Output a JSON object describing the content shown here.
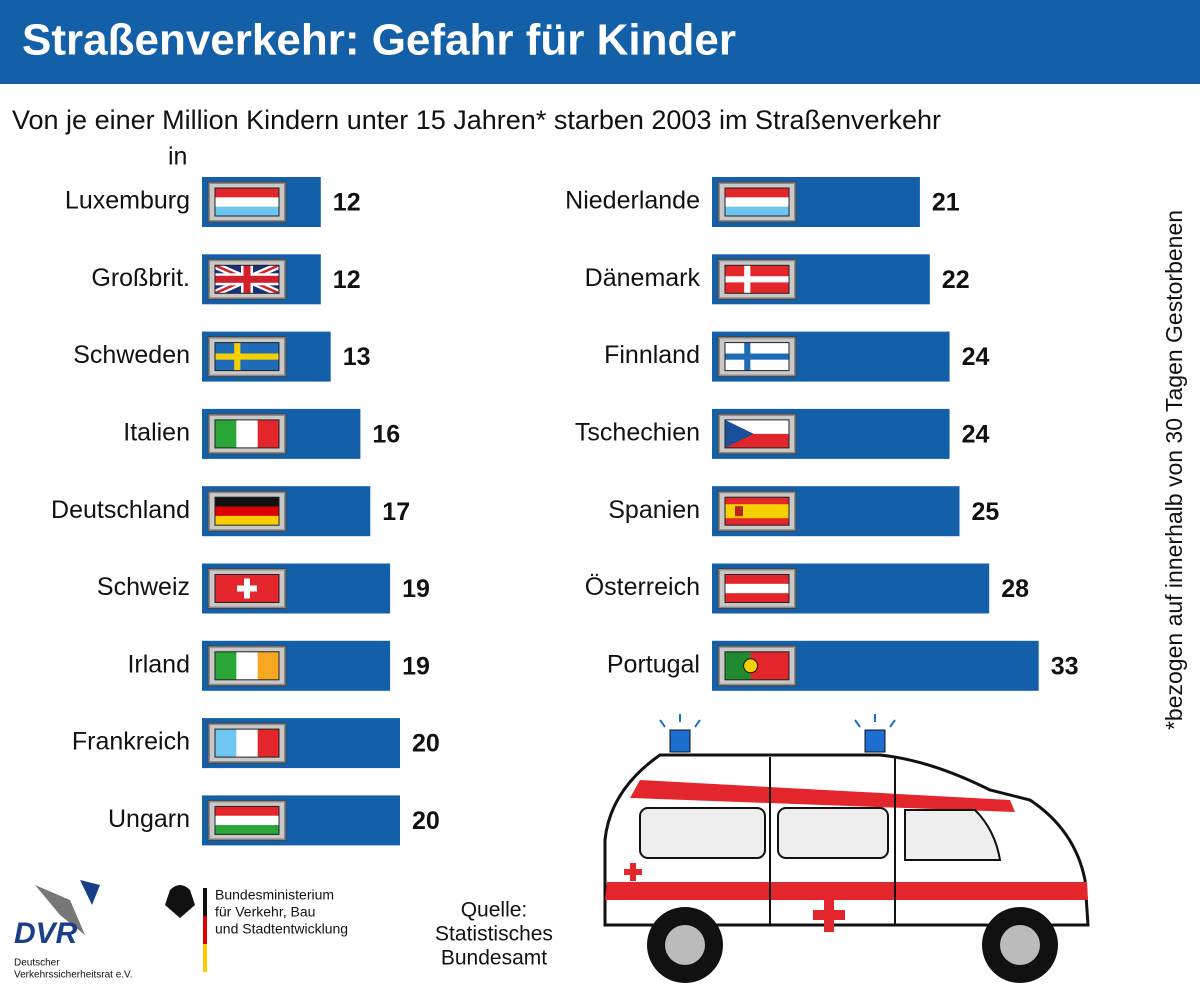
{
  "header": {
    "title": "Straßenverkehr: Gefahr für Kinder",
    "subtitle": "Von je einer Million Kindern unter 15 Jahren* starben 2003 im Straßenverkehr",
    "in_label": "in",
    "footnote": "*bezogen auf innerhalb von 30 Tagen Gestorbenen"
  },
  "chart_data": [
    {
      "type": "bar",
      "color": "#1460a8",
      "categories": [
        "Luxemburg",
        "Großbrit.",
        "Schweden",
        "Italien",
        "Deutschland",
        "Schweiz",
        "Irland",
        "Frankreich",
        "Ungarn"
      ],
      "values": [
        12,
        12,
        13,
        16,
        17,
        19,
        19,
        20,
        20
      ]
    },
    {
      "type": "bar",
      "color": "#1460a8",
      "categories": [
        "Niederlande",
        "Dänemark",
        "Finnland",
        "Tschechien",
        "Spanien",
        "Österreich",
        "Portugal"
      ],
      "values": [
        21,
        22,
        24,
        24,
        25,
        28,
        33
      ]
    }
  ],
  "source": {
    "lines": [
      "Quelle:",
      "Statistisches",
      "Bundesamt"
    ]
  },
  "logos": {
    "dvr": "DVR",
    "dvr_name": [
      "Deutscher",
      "Verkehrssicherheitsrat e.V."
    ],
    "ministry": [
      "Bundesministerium",
      "für Verkehr, Bau",
      "und Stadtentwicklung"
    ]
  }
}
